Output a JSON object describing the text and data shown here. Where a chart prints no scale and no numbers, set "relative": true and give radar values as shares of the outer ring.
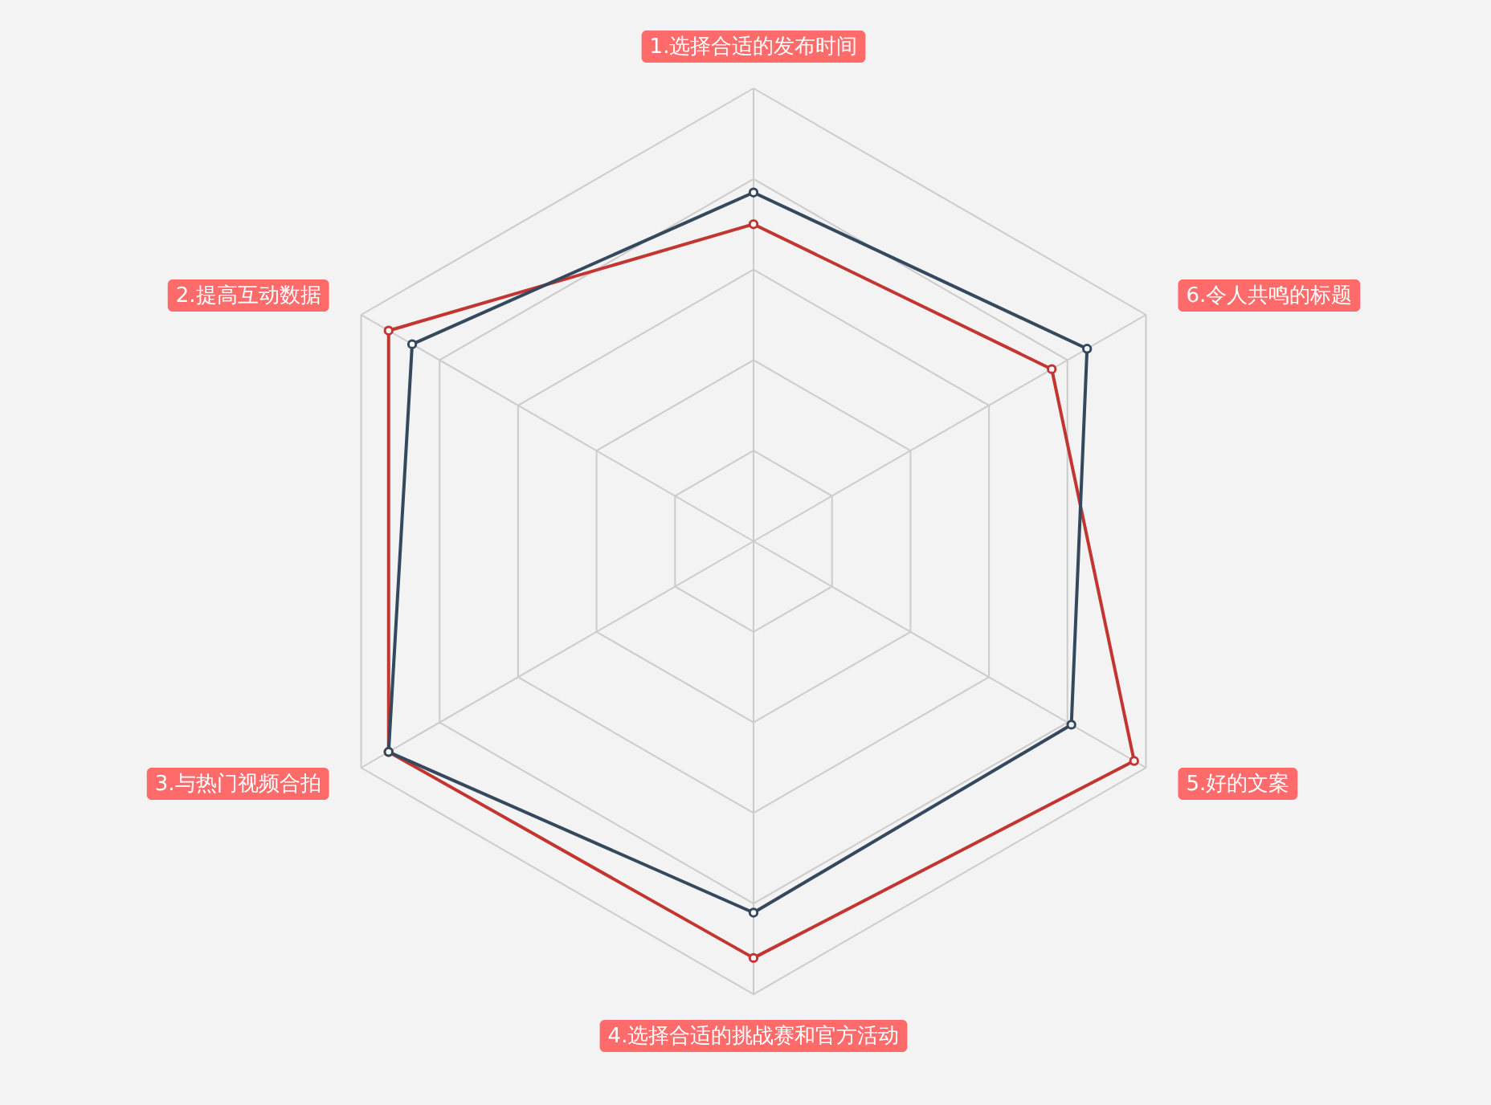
{
  "chart_data": {
    "type": "radar",
    "relative": true,
    "grid": true,
    "marker": "circle",
    "line_style": "solid",
    "categories": [
      "1.选择合适的发布时间",
      "6.令人共鸣的标题",
      "5.好的文案",
      "4.选择合适的挑战赛和官方活动",
      "3.与热门视频合拍",
      "2.提高互动数据"
    ],
    "series": [
      {
        "color": "#34495e",
        "values": [
          0.77,
          0.85,
          0.81,
          0.82,
          0.93,
          0.87
        ]
      },
      {
        "color": "#c23531",
        "values": [
          0.7,
          0.76,
          0.97,
          0.92,
          0.93,
          0.93
        ]
      }
    ]
  }
}
